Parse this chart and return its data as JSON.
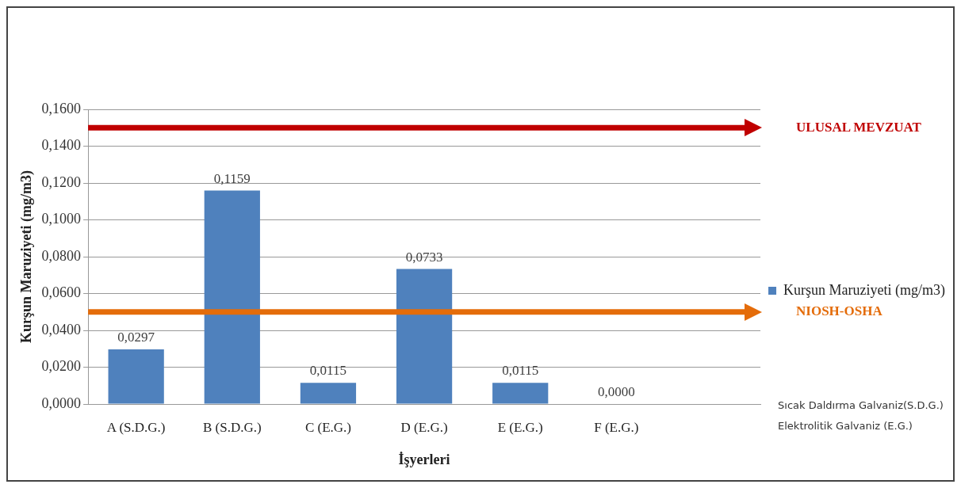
{
  "chart_data": {
    "type": "bar",
    "xlabel": "İşyerleri",
    "ylabel": "Kurşun Maruziyeti (mg/m3)",
    "categories": [
      "A (S.D.G.)",
      "B (S.D.G.)",
      "C (E.G.)",
      "D (E.G.)",
      "E (E.G.)",
      "F (E.G.)",
      null
    ],
    "series": [
      {
        "name": "Kurşun Maruziyeti (mg/m3)",
        "color": "#4f81bd",
        "values": [
          0.0297,
          0.1159,
          0.0115,
          0.0733,
          0.0115,
          0,
          null
        ],
        "value_labels": [
          "0,0297",
          "0,1159",
          "0,0115",
          "0,0733",
          "0,0115",
          "0,0000",
          null
        ]
      }
    ],
    "ylim": [
      0,
      0.16
    ],
    "yticks": [
      {
        "value": 0,
        "label": "0,0000"
      },
      {
        "value": 0.02,
        "label": "0,0200"
      },
      {
        "value": 0.04,
        "label": "0,0400"
      },
      {
        "value": 0.06,
        "label": "0,0600"
      },
      {
        "value": 0.08,
        "label": "0,0800"
      },
      {
        "value": 0.1,
        "label": "0,1000"
      },
      {
        "value": 0.12,
        "label": "0,1200"
      },
      {
        "value": 0.14,
        "label": "0,1400"
      },
      {
        "value": 0.16,
        "label": "0,1600"
      }
    ],
    "ref_lines": [
      {
        "axis": "y",
        "value": 0.15,
        "label": "ULUSAL MEVZUAT",
        "color": "#c00000"
      },
      {
        "axis": "y",
        "value": 0.05,
        "label": "NIOSH-OSHA",
        "color": "#e46c0a"
      }
    ],
    "annotations": [
      "Sıcak Daldırma Galvaniz(S.D.G.)",
      "Elektrolitik Galvaniz (E.G.)"
    ],
    "grid": "y",
    "legend": "right"
  }
}
